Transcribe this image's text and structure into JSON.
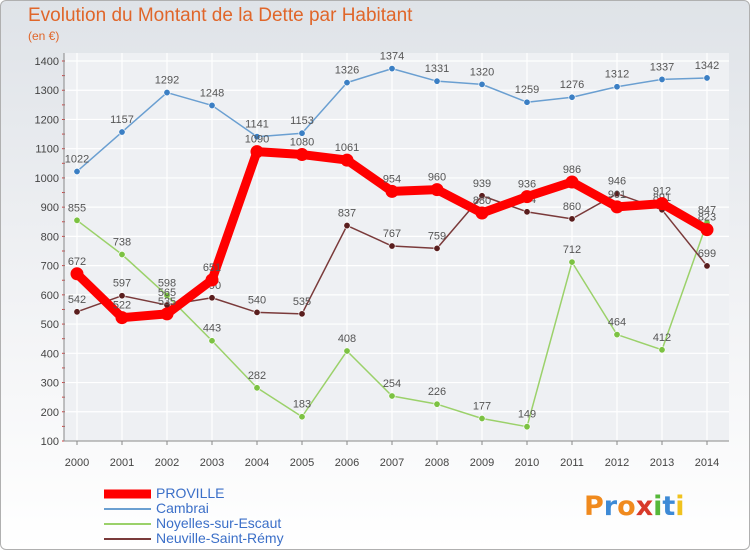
{
  "title": "Evolution du Montant de la Dette par Habitant",
  "subtitle": "(en €)",
  "logo": {
    "text": "Proxiti",
    "letters": [
      "P",
      "r",
      "o",
      "x",
      "i",
      "t",
      "i"
    ],
    "colors": [
      "#f08a1e",
      "#3d8ad6",
      "#f08a1e",
      "#d83a2a",
      "#56b83a",
      "#3d8ad6",
      "#f0c21e"
    ]
  },
  "chart_data": {
    "type": "line",
    "x": [
      2000,
      2001,
      2002,
      2003,
      2004,
      2005,
      2006,
      2007,
      2008,
      2009,
      2010,
      2011,
      2012,
      2013,
      2014
    ],
    "ylim": [
      100,
      1400
    ],
    "yticks": [
      100,
      200,
      300,
      400,
      500,
      600,
      700,
      800,
      900,
      1000,
      1100,
      1200,
      1300,
      1400
    ],
    "grid": true,
    "legend_position": "bottom-left",
    "series": [
      {
        "name": "Cambrai",
        "color": "#6a9fd1",
        "marker": "#3b7fc4",
        "values": [
          1022,
          1157,
          1292,
          1248,
          1141,
          1153,
          1326,
          1374,
          1331,
          1320,
          1259,
          1276,
          1312,
          1337,
          1342
        ]
      },
      {
        "name": "Noyelles-sur-Escaut",
        "color": "#9bd16a",
        "marker": "#7cc242",
        "values": [
          855,
          738,
          598,
          443,
          282,
          183,
          408,
          254,
          226,
          177,
          149,
          712,
          464,
          412,
          847
        ]
      },
      {
        "name": "Neuville-Saint-Rémy",
        "color": "#7a3a3a",
        "marker": "#5a1e1e",
        "values": [
          542,
          597,
          565,
          590,
          540,
          535,
          837,
          767,
          759,
          939,
          884,
          860,
          946,
          891,
          699
        ]
      },
      {
        "name": "PROVILLE",
        "color": "#ff0000",
        "marker": "#ff0000",
        "values": [
          672,
          522,
          535,
          651,
          1090,
          1080,
          1061,
          954,
          960,
          880,
          936,
          986,
          901,
          912,
          823
        ]
      }
    ],
    "legend": [
      "PROVILLE",
      "Cambrai",
      "Noyelles-sur-Escaut",
      "Neuville-Saint-Rémy"
    ]
  }
}
